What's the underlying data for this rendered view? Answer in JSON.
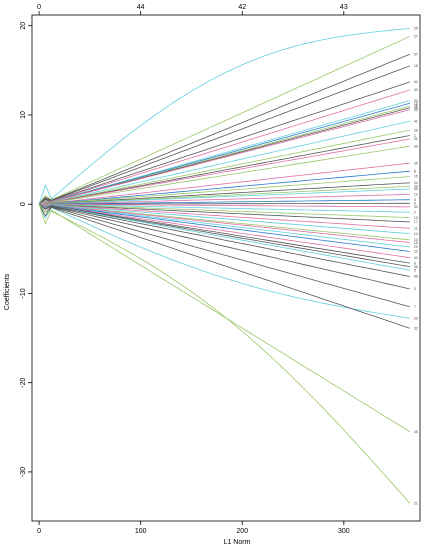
{
  "chart_data": {
    "type": "line",
    "xlabel": "L1 Norm",
    "ylabel": "Coefficients",
    "xlim": [
      -7,
      375
    ],
    "ylim": [
      -35.5,
      21.2
    ],
    "x_ticks": [
      0,
      100,
      200,
      300
    ],
    "y_ticks": [
      -30,
      -20,
      -10,
      0,
      10,
      20
    ],
    "top_axis": {
      "ticks": [
        {
          "at": 0,
          "label": "0"
        },
        {
          "at": 100,
          "label": "44"
        },
        {
          "at": 200,
          "label": "42"
        },
        {
          "at": 300,
          "label": "43"
        }
      ]
    },
    "x_end": 365,
    "series": [
      {
        "label": "25",
        "color": "#61d0df",
        "end": 19.7,
        "early": 2.0,
        "curve": 0.25
      },
      {
        "label": "27",
        "color": "#9bc86a",
        "end": 18.8,
        "early": 0.8,
        "curve": 0.0
      },
      {
        "label": "37",
        "color": "#555555",
        "end": 16.8,
        "early": 0.6,
        "curve": 0.0
      },
      {
        "label": "16",
        "color": "#555555",
        "end": 15.5,
        "early": 0.5,
        "curve": 0.0
      },
      {
        "label": "44",
        "color": "#555555",
        "end": 13.7,
        "early": 0.4,
        "curve": 0.0
      },
      {
        "label": "30",
        "color": "#df6fa6",
        "end": 12.8,
        "early": 0.3,
        "curve": 0.0
      },
      {
        "label": "33",
        "color": "#61d0df",
        "end": 11.6,
        "early": 0.3,
        "curve": 0.0
      },
      {
        "label": "19",
        "color": "#2a79d0",
        "end": 11.3,
        "early": 0.2,
        "curve": 0.0
      },
      {
        "label": "28",
        "color": "#9bc86a",
        "end": 11.0,
        "early": 0.2,
        "curve": 0.0
      },
      {
        "label": "38",
        "color": "#555555",
        "end": 10.8,
        "early": 0.2,
        "curve": 0.0
      },
      {
        "label": "43",
        "color": "#df6fa6",
        "end": 10.6,
        "early": 0.2,
        "curve": 0.0
      },
      {
        "label": "41",
        "color": "#61d0df",
        "end": 9.3,
        "early": 0.2,
        "curve": 0.0
      },
      {
        "label": "26",
        "color": "#9bc86a",
        "end": 8.3,
        "early": 0.2,
        "curve": 0.0
      },
      {
        "label": "1",
        "color": "#555555",
        "end": 7.7,
        "early": 0.5,
        "curve": 0.0
      },
      {
        "label": "31",
        "color": "#df6fa6",
        "end": 7.3,
        "early": 0.3,
        "curve": 0.0
      },
      {
        "label": "39",
        "color": "#9bc86a",
        "end": 6.5,
        "early": 0.2,
        "curve": 0.0
      },
      {
        "label": "35",
        "color": "#df6fa6",
        "end": 4.6,
        "early": 0.1,
        "curve": 0.0
      },
      {
        "label": "8",
        "color": "#2a79d0",
        "end": 3.7,
        "early": 0.1,
        "curve": 0.0
      },
      {
        "label": "15",
        "color": "#9bc86a",
        "end": 3.1,
        "early": 0.1,
        "curve": 0.0
      },
      {
        "label": "24",
        "color": "#555555",
        "end": 2.4,
        "early": 0.1,
        "curve": 0.0
      },
      {
        "label": "20",
        "color": "#9bc86a",
        "end": 2.0,
        "early": 0.1,
        "curve": 0.0
      },
      {
        "label": "40",
        "color": "#61d0df",
        "end": 1.7,
        "early": 0.1,
        "curve": 0.0
      },
      {
        "label": "12",
        "color": "#df6fa6",
        "end": 1.1,
        "early": 0.1,
        "curve": 0.0
      },
      {
        "label": "4",
        "color": "#2a79d0",
        "end": 0.5,
        "early": 0.0,
        "curve": 0.0
      },
      {
        "label": "9",
        "color": "#555555",
        "end": 0.1,
        "early": 0.0,
        "curve": 0.0
      },
      {
        "label": "34",
        "color": "#df6fa6",
        "end": -0.3,
        "early": 0.0,
        "curve": 0.0
      },
      {
        "label": "2",
        "color": "#61d0df",
        "end": -0.9,
        "early": 0.0,
        "curve": 0.0
      },
      {
        "label": "13",
        "color": "#9bc86a",
        "end": -1.5,
        "early": 0.0,
        "curve": 0.0
      },
      {
        "label": "17",
        "color": "#555555",
        "end": -2.0,
        "early": -0.1,
        "curve": 0.0
      },
      {
        "label": "11",
        "color": "#df6fa6",
        "end": -2.7,
        "early": -0.1,
        "curve": 0.0
      },
      {
        "label": "14",
        "color": "#61d0df",
        "end": -3.3,
        "early": -0.1,
        "curve": 0.0
      },
      {
        "label": "10",
        "color": "#9bc86a",
        "end": -4.0,
        "early": -0.1,
        "curve": 0.0
      },
      {
        "label": "18",
        "color": "#df6fa6",
        "end": -4.3,
        "early": -0.1,
        "curve": 0.0
      },
      {
        "label": "29",
        "color": "#61d0df",
        "end": -4.8,
        "early": -0.2,
        "curve": 0.0
      },
      {
        "label": "22",
        "color": "#2a79d0",
        "end": -5.3,
        "early": -0.2,
        "curve": 0.0
      },
      {
        "label": "42",
        "color": "#df6fa6",
        "end": -6.0,
        "early": -0.2,
        "curve": 0.0
      },
      {
        "label": "6",
        "color": "#555555",
        "end": -6.6,
        "early": -0.3,
        "curve": 0.0
      },
      {
        "label": "36",
        "color": "#555555",
        "end": -7.0,
        "early": -0.3,
        "curve": 0.0
      },
      {
        "label": "5",
        "color": "#61d0df",
        "end": -7.4,
        "early": -0.3,
        "curve": 0.0
      },
      {
        "label": "46",
        "color": "#555555",
        "end": -8.1,
        "early": -0.4,
        "curve": 0.0
      },
      {
        "label": "3",
        "color": "#555555",
        "end": -9.5,
        "early": -0.5,
        "curve": 0.0
      },
      {
        "label": "7",
        "color": "#555555",
        "end": -11.5,
        "early": -0.8,
        "curve": 0.0
      },
      {
        "label": "23",
        "color": "#61d0df",
        "end": -12.8,
        "early": -1.5,
        "curve": 0.15
      },
      {
        "label": "32",
        "color": "#555555",
        "end": -13.9,
        "early": -1.2,
        "curve": 0.0
      },
      {
        "label": "45",
        "color": "#9bc86a",
        "end": -25.5,
        "early": -2.0,
        "curve": 0.0
      },
      {
        "label": "21",
        "color": "#9bc86a",
        "end": -33.5,
        "early": -0.5,
        "curve": -0.12
      }
    ]
  }
}
